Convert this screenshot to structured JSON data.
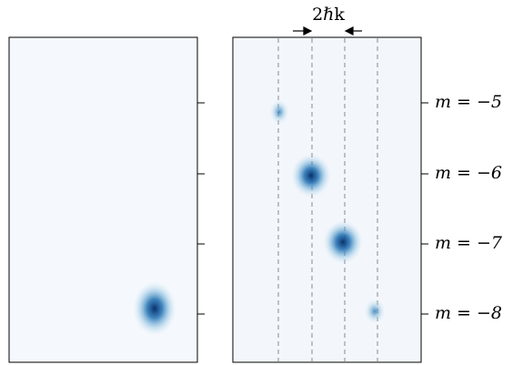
{
  "figure": {
    "annotation": "2ℏk",
    "labels": [
      "m = −5",
      "m = −6",
      "m = −7",
      "m = −8"
    ]
  }
}
